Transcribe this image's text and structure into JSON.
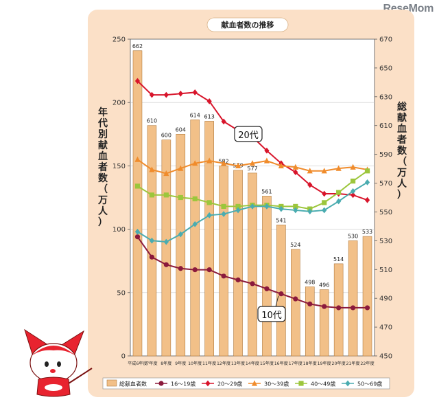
{
  "brand": "ReseMom",
  "chart_data": {
    "type": "bar+line",
    "title": "献血者数の推移",
    "ylabel_left": "年代別献血者数（万人）",
    "ylabel_right": "総献血者数（万人）",
    "ylim_left": [
      0,
      250
    ],
    "yticks_left": [
      "0",
      "50",
      "100",
      "150",
      "200",
      "250"
    ],
    "ylim_right": [
      450,
      670
    ],
    "yticks_right": [
      "450",
      "470",
      "490",
      "510",
      "530",
      "550",
      "570",
      "590",
      "610",
      "630",
      "650",
      "670"
    ],
    "categories": [
      "平成6年度",
      "7年度",
      "8年度",
      "9年度",
      "10年度",
      "11年度",
      "12年度",
      "13年度",
      "14年度",
      "15年度",
      "16年度",
      "17年度",
      "18年度",
      "19年度",
      "20年度",
      "21年度",
      "22年度"
    ],
    "bar_series": {
      "name": "総献血者数",
      "color": "#f2c088",
      "values": [
        662,
        610,
        600,
        604,
        614,
        613,
        582,
        579,
        577,
        561,
        541,
        524,
        498,
        496,
        514,
        530,
        533
      ],
      "labels": [
        "662",
        "610",
        "600",
        "604",
        "614",
        "613",
        "582",
        "579",
        "577",
        "561",
        "541",
        "524",
        "498",
        "496",
        "514",
        "530",
        "533"
      ]
    },
    "series": [
      {
        "name": "16～19歳",
        "color": "#8b1a3c",
        "marker": "circle",
        "values": [
          94,
          78,
          72,
          69,
          68,
          68,
          63,
          60,
          57,
          53,
          49,
          45,
          41,
          39,
          38,
          38,
          38
        ]
      },
      {
        "name": "20～29歳",
        "color": "#d8152b",
        "marker": "diamond",
        "values": [
          217,
          206,
          206,
          207,
          208,
          201,
          185,
          178,
          173,
          162,
          152,
          145,
          135,
          128,
          128,
          127,
          123
        ]
      },
      {
        "name": "30～39歳",
        "color": "#f08c2c",
        "marker": "triangle",
        "values": [
          155,
          147,
          144,
          148,
          152,
          154,
          152,
          150,
          152,
          154,
          150,
          149,
          146,
          146,
          148,
          149,
          147
        ]
      },
      {
        "name": "40～49歳",
        "color": "#9cc63c",
        "marker": "square",
        "values": [
          134,
          127,
          127,
          125,
          124,
          121,
          118,
          118,
          119,
          119,
          118,
          118,
          116,
          121,
          129,
          138,
          146
        ]
      },
      {
        "name": "50～69歳",
        "color": "#4aacb0",
        "marker": "diamond",
        "values": [
          98,
          91,
          90,
          96,
          104,
          111,
          112,
          115,
          118,
          118,
          116,
          115,
          114,
          115,
          122,
          130,
          137
        ]
      }
    ],
    "annotations": [
      "20代",
      "10代"
    ],
    "legend_position": "bottom"
  }
}
